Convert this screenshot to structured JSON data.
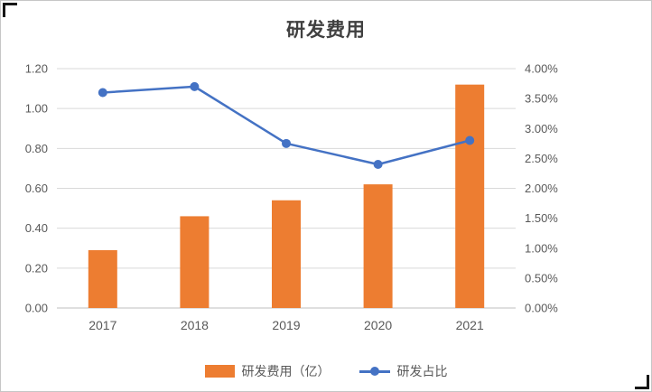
{
  "chart_data": {
    "type": "combo",
    "title": "研发费用",
    "categories": [
      "2017",
      "2018",
      "2019",
      "2020",
      "2021"
    ],
    "series": [
      {
        "name": "研发费用（亿）",
        "type": "bar",
        "axis": "left",
        "values": [
          0.29,
          0.46,
          0.54,
          0.62,
          1.12
        ]
      },
      {
        "name": "研发占比",
        "type": "line",
        "axis": "right",
        "values": [
          3.6,
          3.7,
          2.75,
          2.4,
          2.8
        ]
      }
    ],
    "left_axis": {
      "min": 0,
      "max": 1.2,
      "step": 0.2,
      "tick_labels": [
        "0.00",
        "0.20",
        "0.40",
        "0.60",
        "0.80",
        "1.00",
        "1.20"
      ]
    },
    "right_axis": {
      "min": 0,
      "max": 4,
      "step": 0.5,
      "tick_labels": [
        "0.00%",
        "0.50%",
        "1.00%",
        "1.50%",
        "2.00%",
        "2.50%",
        "3.00%",
        "3.50%",
        "4.00%"
      ]
    },
    "grid": true,
    "legend_position": "bottom",
    "colors": {
      "bar": "#ED7D31",
      "line": "#4472C4",
      "grid": "#D9D9D9",
      "axis_line": "#BFBFBF",
      "axis_text": "#595959",
      "title": "#404040"
    }
  }
}
